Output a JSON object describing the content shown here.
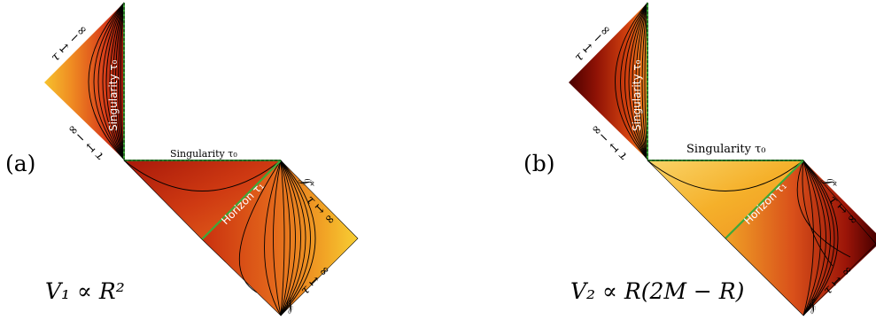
{
  "panels": [
    {
      "id": "a",
      "tag": "(a)",
      "potential_label": "V₁ ∝ R²",
      "singularity_vertical_label": "Singularity τ₀",
      "singularity_horizontal_label": "Singularity τ₀",
      "horizon_label": "Horizon τ₁",
      "tau_minus_infinity_label": "τ ↦ −∞",
      "tau_minus_infinity_label_lower": "τ ↦ −∞",
      "scri_plus_label": "𝒥⁺",
      "scri_minus_label": "𝒥⁻",
      "tau_plus_infinity_upper_label": "τ ↦ ∞",
      "tau_plus_infinity_lower_label": "τ ↦ ∞",
      "colors": {
        "outer_bright": "#f6c22e",
        "mid": "#e0561a",
        "dark": "#b0200a",
        "deepest": "#7a0a05",
        "horizon_line": "#3fa83a"
      }
    },
    {
      "id": "b",
      "tag": "(b)",
      "potential_label": "V₂ ∝ R(2M − R)",
      "singularity_vertical_label": "Singularity τ₀",
      "singularity_horizontal_label": "Singularity τ₀",
      "horizon_label": "Horizon τ₁",
      "tau_minus_infinity_label": "τ ↦ −∞",
      "tau_minus_infinity_label_lower": "τ ↦ −∞",
      "scri_plus_label": "𝒥⁺",
      "scri_minus_label": "𝒥⁻",
      "tau_plus_infinity_upper_label": "τ ↦ ∞",
      "tau_plus_infinity_lower_label": "τ ↦ ∞",
      "colors": {
        "outer_dark": "#4a0000",
        "mid": "#c0300c",
        "bright": "#f5b52a",
        "pale": "#f9d46a",
        "horizon_line": "#3fa83a"
      }
    }
  ]
}
